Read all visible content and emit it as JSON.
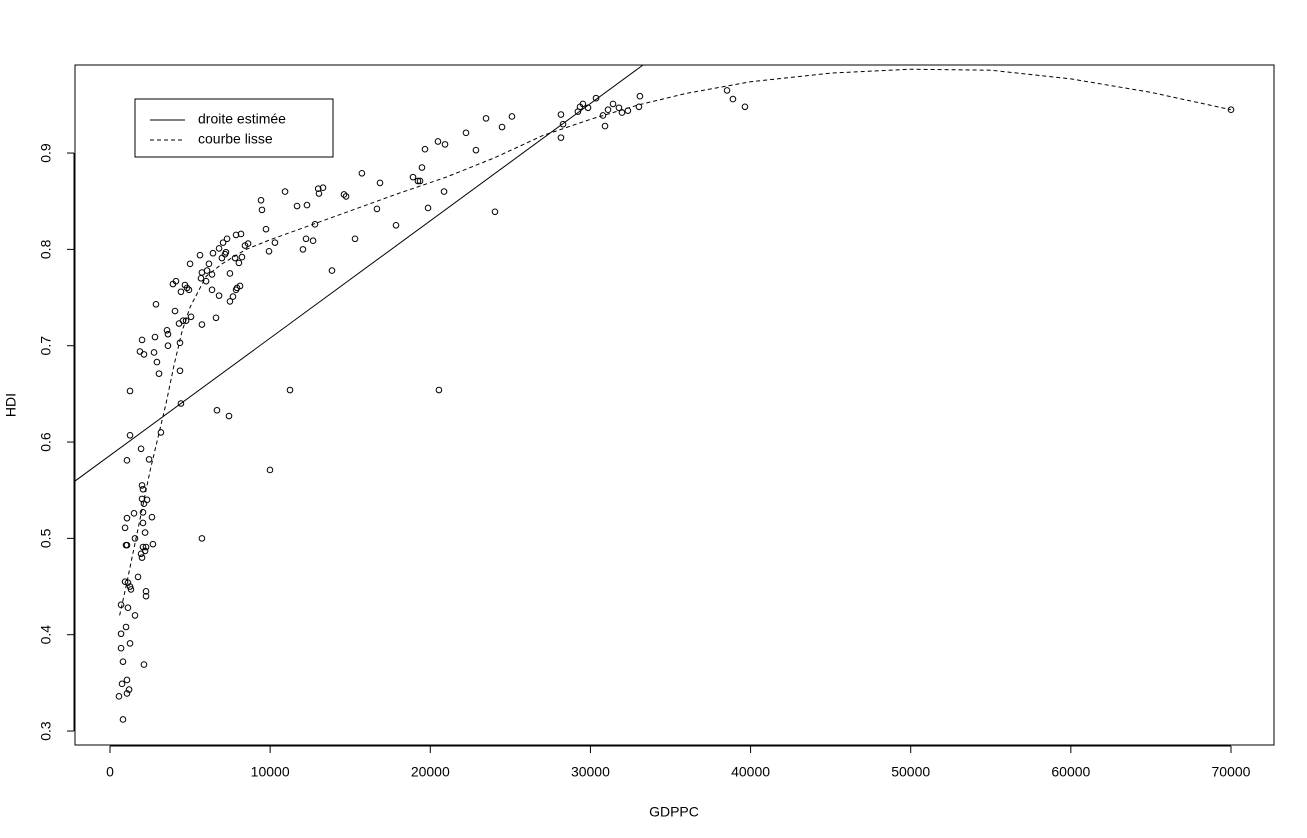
{
  "chart_data": {
    "type": "scatter",
    "x_label": "GDPPC",
    "y_label": "HDI",
    "xlim": [
      -2186,
      72686
    ],
    "ylim": [
      0.2855,
      0.9914
    ],
    "xticks": [
      0,
      10000,
      20000,
      30000,
      40000,
      50000,
      60000,
      70000
    ],
    "yticks": [
      0.3,
      0.4,
      0.5,
      0.6,
      0.7,
      0.8,
      0.9
    ],
    "legend": "top-left",
    "points": {
      "color": "#000000",
      "x": [
        810,
        560,
        1060,
        1190,
        1060,
        750,
        2120,
        810,
        1250,
        690,
        690,
        1000,
        690,
        1120,
        1560,
        2250,
        2250,
        1250,
        1120,
        940,
        1310,
        1750,
        2000,
        2190,
        1940,
        2060,
        2250,
        2680,
        1560,
        5740,
        1060,
        1000,
        2190,
        940,
        2060,
        1060,
        2620,
        1500,
        2060,
        2310,
        2000,
        2120,
        2060,
        2000,
        2440,
        1060,
        1940,
        1250,
        3180,
        1250,
        6680,
        7430,
        4430,
        11240,
        20540,
        9990,
        4370,
        3060,
        2930,
        2750,
        1870,
        2120,
        2000,
        3620,
        4370,
        2810,
        3620,
        3560,
        4310,
        4750,
        4560,
        5740,
        6620,
        5060,
        4060,
        2870,
        6810,
        7680,
        7490,
        4430,
        4680,
        4810,
        4930,
        6370,
        7870,
        7930,
        8120,
        3930,
        4120,
        5680,
        6000,
        5740,
        7490,
        6370,
        5000,
        6180,
        8050,
        6060,
        6990,
        7810,
        5620,
        7180,
        8240,
        6430,
        7240,
        6810,
        7060,
        8430,
        8620,
        7310,
        7870,
        8180,
        9740,
        9930,
        10300,
        12050,
        12240,
        12680,
        12800,
        9490,
        9430,
        10930,
        11680,
        12300,
        15300,
        13860,
        13000,
        13050,
        13300,
        14610,
        14740,
        15730,
        16670,
        16860,
        17860,
        18920,
        19230,
        19360,
        19480,
        19670,
        19860,
        20480,
        20920,
        20860,
        22230,
        22850,
        23480,
        24040,
        24480,
        25100,
        28160,
        28160,
        28290,
        29220,
        29350,
        29530,
        29850,
        30350,
        30780,
        30910,
        31100,
        31410,
        31780,
        31970,
        32340,
        33030,
        33090,
        38530,
        38900,
        39650,
        70000
      ],
      "values": [
        0.312,
        0.336,
        0.339,
        0.343,
        0.353,
        0.349,
        0.369,
        0.372,
        0.391,
        0.386,
        0.401,
        0.408,
        0.431,
        0.428,
        0.42,
        0.44,
        0.445,
        0.45,
        0.454,
        0.455,
        0.447,
        0.46,
        0.48,
        0.487,
        0.484,
        0.491,
        0.491,
        0.494,
        0.5,
        0.5,
        0.493,
        0.493,
        0.506,
        0.511,
        0.516,
        0.521,
        0.522,
        0.526,
        0.527,
        0.54,
        0.541,
        0.536,
        0.551,
        0.555,
        0.582,
        0.581,
        0.593,
        0.607,
        0.61,
        0.653,
        0.633,
        0.627,
        0.64,
        0.654,
        0.654,
        0.571,
        0.674,
        0.671,
        0.683,
        0.693,
        0.694,
        0.691,
        0.706,
        0.7,
        0.703,
        0.709,
        0.712,
        0.716,
        0.723,
        0.726,
        0.726,
        0.722,
        0.729,
        0.73,
        0.736,
        0.743,
        0.752,
        0.751,
        0.746,
        0.756,
        0.763,
        0.76,
        0.758,
        0.758,
        0.758,
        0.76,
        0.762,
        0.764,
        0.767,
        0.77,
        0.767,
        0.776,
        0.775,
        0.774,
        0.785,
        0.785,
        0.786,
        0.778,
        0.791,
        0.791,
        0.794,
        0.795,
        0.792,
        0.796,
        0.797,
        0.801,
        0.807,
        0.804,
        0.806,
        0.811,
        0.815,
        0.816,
        0.821,
        0.798,
        0.807,
        0.8,
        0.811,
        0.809,
        0.826,
        0.841,
        0.851,
        0.86,
        0.845,
        0.846,
        0.811,
        0.778,
        0.863,
        0.858,
        0.864,
        0.857,
        0.855,
        0.879,
        0.842,
        0.869,
        0.825,
        0.875,
        0.871,
        0.871,
        0.885,
        0.904,
        0.843,
        0.912,
        0.909,
        0.86,
        0.921,
        0.903,
        0.936,
        0.839,
        0.927,
        0.938,
        0.94,
        0.916,
        0.93,
        0.943,
        0.948,
        0.951,
        0.947,
        0.957,
        0.939,
        0.928,
        0.945,
        0.951,
        0.947,
        0.942,
        0.944,
        0.948,
        0.959,
        0.965,
        0.956,
        0.948,
        0.945
      ]
    },
    "series": [
      {
        "name": "droite estimée",
        "color": "#000000",
        "style": "solid",
        "x": [
          -2186,
          33283
        ],
        "values": [
          0.5595,
          0.9914
        ]
      },
      {
        "name": "courbe lisse",
        "color": "#000000",
        "style": "dashed",
        "x": [
          600,
          1000,
          1500,
          2000,
          2500,
          3000,
          3500,
          4000,
          4500,
          5000,
          6000,
          7000,
          8500,
          10000,
          12000,
          15000,
          18000,
          21000,
          24000,
          27000,
          30000,
          33000,
          36000,
          40000,
          45000,
          50000,
          55000,
          60000,
          65000,
          70000
        ],
        "values": [
          0.42,
          0.45,
          0.49,
          0.53,
          0.57,
          0.605,
          0.64,
          0.68,
          0.715,
          0.74,
          0.772,
          0.785,
          0.8,
          0.81,
          0.822,
          0.84,
          0.858,
          0.875,
          0.895,
          0.918,
          0.935,
          0.95,
          0.962,
          0.974,
          0.983,
          0.987,
          0.986,
          0.977,
          0.963,
          0.945
        ]
      }
    ]
  }
}
